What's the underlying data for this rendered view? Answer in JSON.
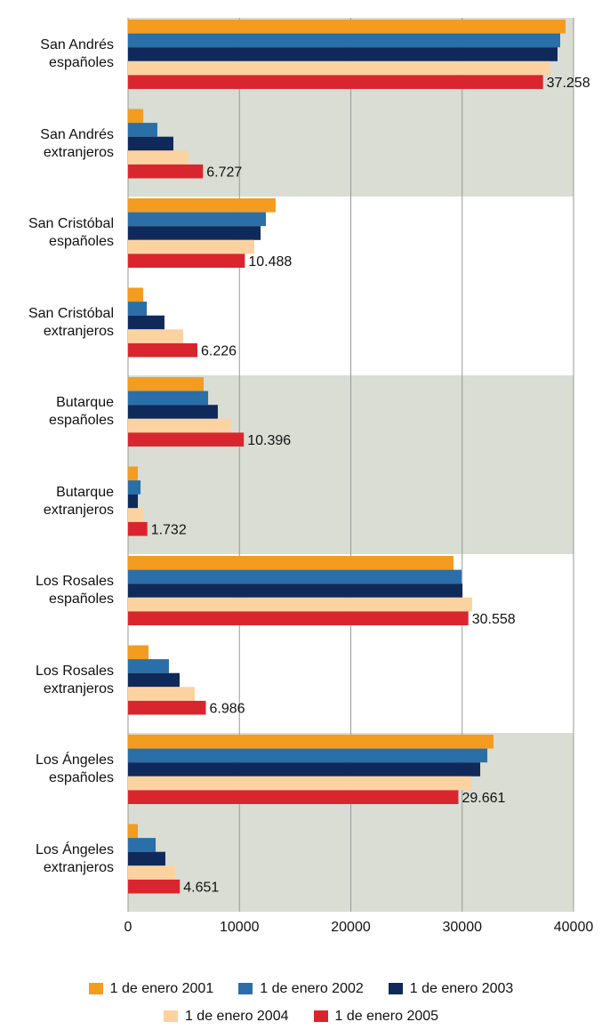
{
  "chart_data": {
    "type": "bar",
    "orientation": "horizontal",
    "categories": [
      "San Andrés\nespañoles",
      "San Andrés\nextranjeros",
      "San Cristóbal\nespañoles",
      "San Cristóbal\nextranjeros",
      "Butarque\nespañoles",
      "Butarque\nextranjeros",
      "Los Rosales\nespañoles",
      "Los Rosales\nextranjeros",
      "Los Ángeles\nespañoles",
      "Los Ángeles\nextranjeros"
    ],
    "series": [
      {
        "name": "1 de enero 2001",
        "color": "#f39c1f",
        "values": [
          39280,
          1360,
          13250,
          1360,
          6790,
          880,
          29220,
          1840,
          32810,
          880
        ]
      },
      {
        "name": "1 de enero 2002",
        "color": "#2a6fa8",
        "values": [
          38800,
          2630,
          12380,
          1680,
          7190,
          1120,
          29940,
          3670,
          32260,
          2480
        ]
      },
      {
        "name": "1 de enero 2003",
        "color": "#0f2a5a",
        "values": [
          38560,
          4070,
          11900,
          3270,
          8060,
          880,
          30020,
          4630,
          31620,
          3350
        ]
      },
      {
        "name": "1 de enero 2004",
        "color": "#fcd3a0",
        "values": [
          37900,
          5430,
          11340,
          4950,
          9260,
          1360,
          30900,
          5990,
          30820,
          4230
        ]
      },
      {
        "name": "1 de enero 2005",
        "color": "#d9262e",
        "values": [
          37258,
          6727,
          10488,
          6226,
          10396,
          1732,
          30558,
          6986,
          29661,
          4651
        ],
        "value_labels": [
          "37.258",
          "6.727",
          "10.488",
          "6.226",
          "10.396",
          "1.732",
          "30.558",
          "6.986",
          "29.661",
          "4.651"
        ]
      }
    ],
    "xlim": [
      0,
      40000
    ],
    "xticks": [
      0,
      10000,
      20000,
      30000,
      40000
    ],
    "grid": true,
    "legend": "bottom"
  }
}
